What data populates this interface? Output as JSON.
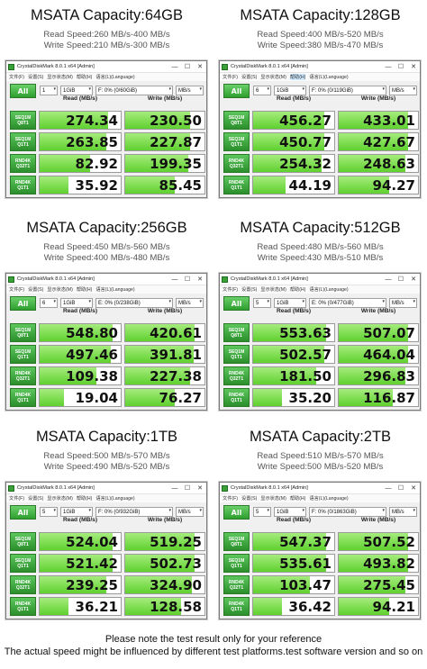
{
  "app": {
    "window_title": "CrystalDiskMark 8.0.1 x64 [Admin]",
    "menu": [
      "文件(F)",
      "设置(S)",
      "显示状态(M)",
      "帮助(H)",
      "语言(L)(Language)"
    ],
    "all_button": "All",
    "count_value": "1GiB",
    "unit_value": "MB/s",
    "read_header": "Read (MB/s)",
    "write_header": "Write (MB/s)",
    "tests": [
      {
        "line1": "SEQ1M",
        "line2": "Q8T1"
      },
      {
        "line1": "SEQ1M",
        "line2": "Q1T1"
      },
      {
        "line1": "RND4K",
        "line2": "Q32T1"
      },
      {
        "line1": "RND4K",
        "line2": "Q1T1"
      }
    ],
    "minimize": "—",
    "maximize": "☐",
    "close": "✕",
    "dropdown_arrow": "▾"
  },
  "panels": [
    {
      "title": "MSATA Capacity:64GB",
      "read_speed": "Read Speed:260 MB/s-400 MB/s",
      "write_speed": "Write Speed:210 MB/s-300 MB/s",
      "runs": "1",
      "drive": "F: 0% (0/60GiB)",
      "menu_highlight": -1,
      "read": [
        "274.34",
        "263.85",
        "82.92",
        "35.92"
      ],
      "write": [
        "230.50",
        "227.87",
        "199.35",
        "85.45"
      ],
      "read_fill": [
        0.84,
        0.82,
        0.62,
        0.36
      ],
      "write_fill": [
        0.82,
        0.82,
        0.8,
        0.62
      ]
    },
    {
      "title": "MSATA Capacity:128GB",
      "read_speed": "Read Speed:400 MB/s-520 MB/s",
      "write_speed": "Write Speed:380 MB/s-470 MB/s",
      "runs": "6",
      "drive": "F: 0% (0/119GiB)",
      "menu_highlight": 3,
      "read": [
        "456.27",
        "450.77",
        "254.32",
        "44.19"
      ],
      "write": [
        "433.01",
        "427.67",
        "248.63",
        "94.27"
      ],
      "read_fill": [
        0.88,
        0.88,
        0.84,
        0.4
      ],
      "write_fill": [
        0.88,
        0.88,
        0.84,
        0.64
      ]
    },
    {
      "title": "MSATA Capacity:256GB",
      "read_speed": "Read Speed:450 MB/s-560 MB/s",
      "write_speed": "Write Speed:400 MB/s-480 MB/s",
      "runs": "6",
      "drive": "E: 0% (0/238GiB)",
      "menu_highlight": -1,
      "read": [
        "548.80",
        "497.46",
        "109.38",
        "19.04"
      ],
      "write": [
        "420.61",
        "391.81",
        "227.38",
        "76.27"
      ],
      "read_fill": [
        0.9,
        0.88,
        0.7,
        0.3
      ],
      "write_fill": [
        0.88,
        0.86,
        0.82,
        0.62
      ]
    },
    {
      "title": "MSATA Capacity:512GB",
      "read_speed": "Read Speed:480 MB/s-560 MB/s",
      "write_speed": "Write Speed:430 MB/s-510 MB/s",
      "runs": "5",
      "drive": "E: 0% (0/477GiB)",
      "menu_highlight": -1,
      "read": [
        "553.63",
        "502.57",
        "181.50",
        "35.20"
      ],
      "write": [
        "507.07",
        "464.04",
        "296.83",
        "116.87"
      ],
      "read_fill": [
        0.9,
        0.88,
        0.78,
        0.36
      ],
      "write_fill": [
        0.88,
        0.88,
        0.84,
        0.68
      ]
    },
    {
      "title": "MSATA Capacity:1TB",
      "read_speed": "Read Speed:500 MB/s-570 MB/s",
      "write_speed": "Write Speed:490 MB/s-520 MB/s",
      "runs": "5",
      "drive": "F: 0% (0/932GiB)",
      "menu_highlight": -1,
      "read": [
        "524.04",
        "521.42",
        "239.25",
        "36.21"
      ],
      "write": [
        "519.25",
        "502.73",
        "324.90",
        "128.58"
      ],
      "read_fill": [
        0.9,
        0.9,
        0.82,
        0.36
      ],
      "write_fill": [
        0.88,
        0.88,
        0.84,
        0.7
      ]
    },
    {
      "title": "MSATA Capacity:2TB",
      "read_speed": "Read Speed:510 MB/s-570 MB/s",
      "write_speed": "Write Speed:500 MB/s-520 MB/s",
      "runs": "5",
      "drive": "F: 0% (0/1863GiB)",
      "menu_highlight": -1,
      "read": [
        "547.37",
        "535.61",
        "103.47",
        "36.42"
      ],
      "write": [
        "507.52",
        "493.82",
        "275.45",
        "94.21"
      ],
      "read_fill": [
        0.9,
        0.9,
        0.7,
        0.36
      ],
      "write_fill": [
        0.88,
        0.88,
        0.84,
        0.64
      ]
    }
  ],
  "footer": {
    "line1": "Please note the test result only for your reference",
    "line2": "The actual speed might be influenced by different test platforms.test software version and so on"
  }
}
